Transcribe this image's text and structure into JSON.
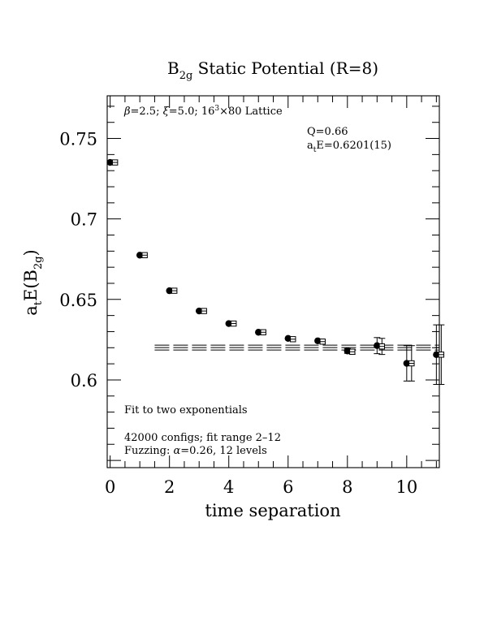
{
  "chart_data": {
    "type": "scatter",
    "title": {
      "main_before_sub": "B",
      "main_sub": "2g",
      "main_after_sub": " Static Potential (R=8)"
    },
    "xlabel": "time separation",
    "ylabel": {
      "prefix": "a",
      "prefix_sub": "t",
      "middle": "E(B",
      "middle_sub": "2g",
      "suffix": ")"
    },
    "xlim": [
      -0.1,
      11.1
    ],
    "ylim": [
      0.5455,
      0.7765
    ],
    "x_ticks": [
      0,
      2,
      4,
      6,
      8,
      10
    ],
    "x_tick_labels": [
      "0",
      "2",
      "4",
      "6",
      "8",
      "10"
    ],
    "y_ticks": [
      0.6,
      0.65,
      0.7,
      0.75
    ],
    "y_tick_labels": [
      "0.6",
      "0.65",
      "0.7",
      "0.75"
    ],
    "annotations": {
      "lattice": {
        "beta_sym": "β",
        "beta_text": "=2.5; ",
        "xi_sym": "ξ",
        "xi_text": "=5.0; 16",
        "sup": "3",
        "lattice_end": "×80 Lattice"
      },
      "q_value": "Q=0.66",
      "energy": {
        "prefix": "a",
        "sub": "t",
        "text": "E=0.6201(15)"
      },
      "fit_label": "Fit to two exponentials",
      "configs": "42000 configs; fit range 2–12",
      "fuzzing": {
        "prefix": "Fuzzing: ",
        "alpha": "α",
        "text": "=0.26, 12 levels"
      }
    },
    "fit": {
      "range": [
        1.5,
        11.1
      ],
      "value": 0.6201,
      "error": 0.0015
    },
    "series": [
      {
        "marker": "filled-circle",
        "points": [
          {
            "x": 0,
            "y": 0.7351,
            "err": 0
          },
          {
            "x": 1,
            "y": 0.6775,
            "err": 0
          },
          {
            "x": 2,
            "y": 0.6554,
            "err": 0
          },
          {
            "x": 3,
            "y": 0.6428,
            "err": 0
          },
          {
            "x": 4,
            "y": 0.635,
            "err": 0
          },
          {
            "x": 5,
            "y": 0.6296,
            "err": 0
          },
          {
            "x": 6,
            "y": 0.6258,
            "err": 0
          },
          {
            "x": 7,
            "y": 0.6243,
            "err": 0
          },
          {
            "x": 8,
            "y": 0.618,
            "err": 0.0015
          },
          {
            "x": 9,
            "y": 0.6213,
            "err": 0.005
          },
          {
            "x": 10,
            "y": 0.6103,
            "err": 0.011
          },
          {
            "x": 11,
            "y": 0.6157,
            "err": 0.0185
          }
        ]
      },
      {
        "marker": "open-square",
        "points": [
          {
            "x": 0,
            "y": 0.7351,
            "err": 0
          },
          {
            "x": 1,
            "y": 0.6775,
            "err": 0
          },
          {
            "x": 2,
            "y": 0.6554,
            "err": 0
          },
          {
            "x": 3,
            "y": 0.6428,
            "err": 0
          },
          {
            "x": 4,
            "y": 0.635,
            "err": 0
          },
          {
            "x": 5,
            "y": 0.6296,
            "err": 0
          },
          {
            "x": 6,
            "y": 0.6253,
            "err": 0
          },
          {
            "x": 7,
            "y": 0.6238,
            "err": 0
          },
          {
            "x": 8,
            "y": 0.6175,
            "err": 0.0015
          },
          {
            "x": 9,
            "y": 0.6208,
            "err": 0.005
          },
          {
            "x": 10,
            "y": 0.6103,
            "err": 0.011
          },
          {
            "x": 11,
            "y": 0.6157,
            "err": 0.0185
          }
        ]
      }
    ]
  }
}
